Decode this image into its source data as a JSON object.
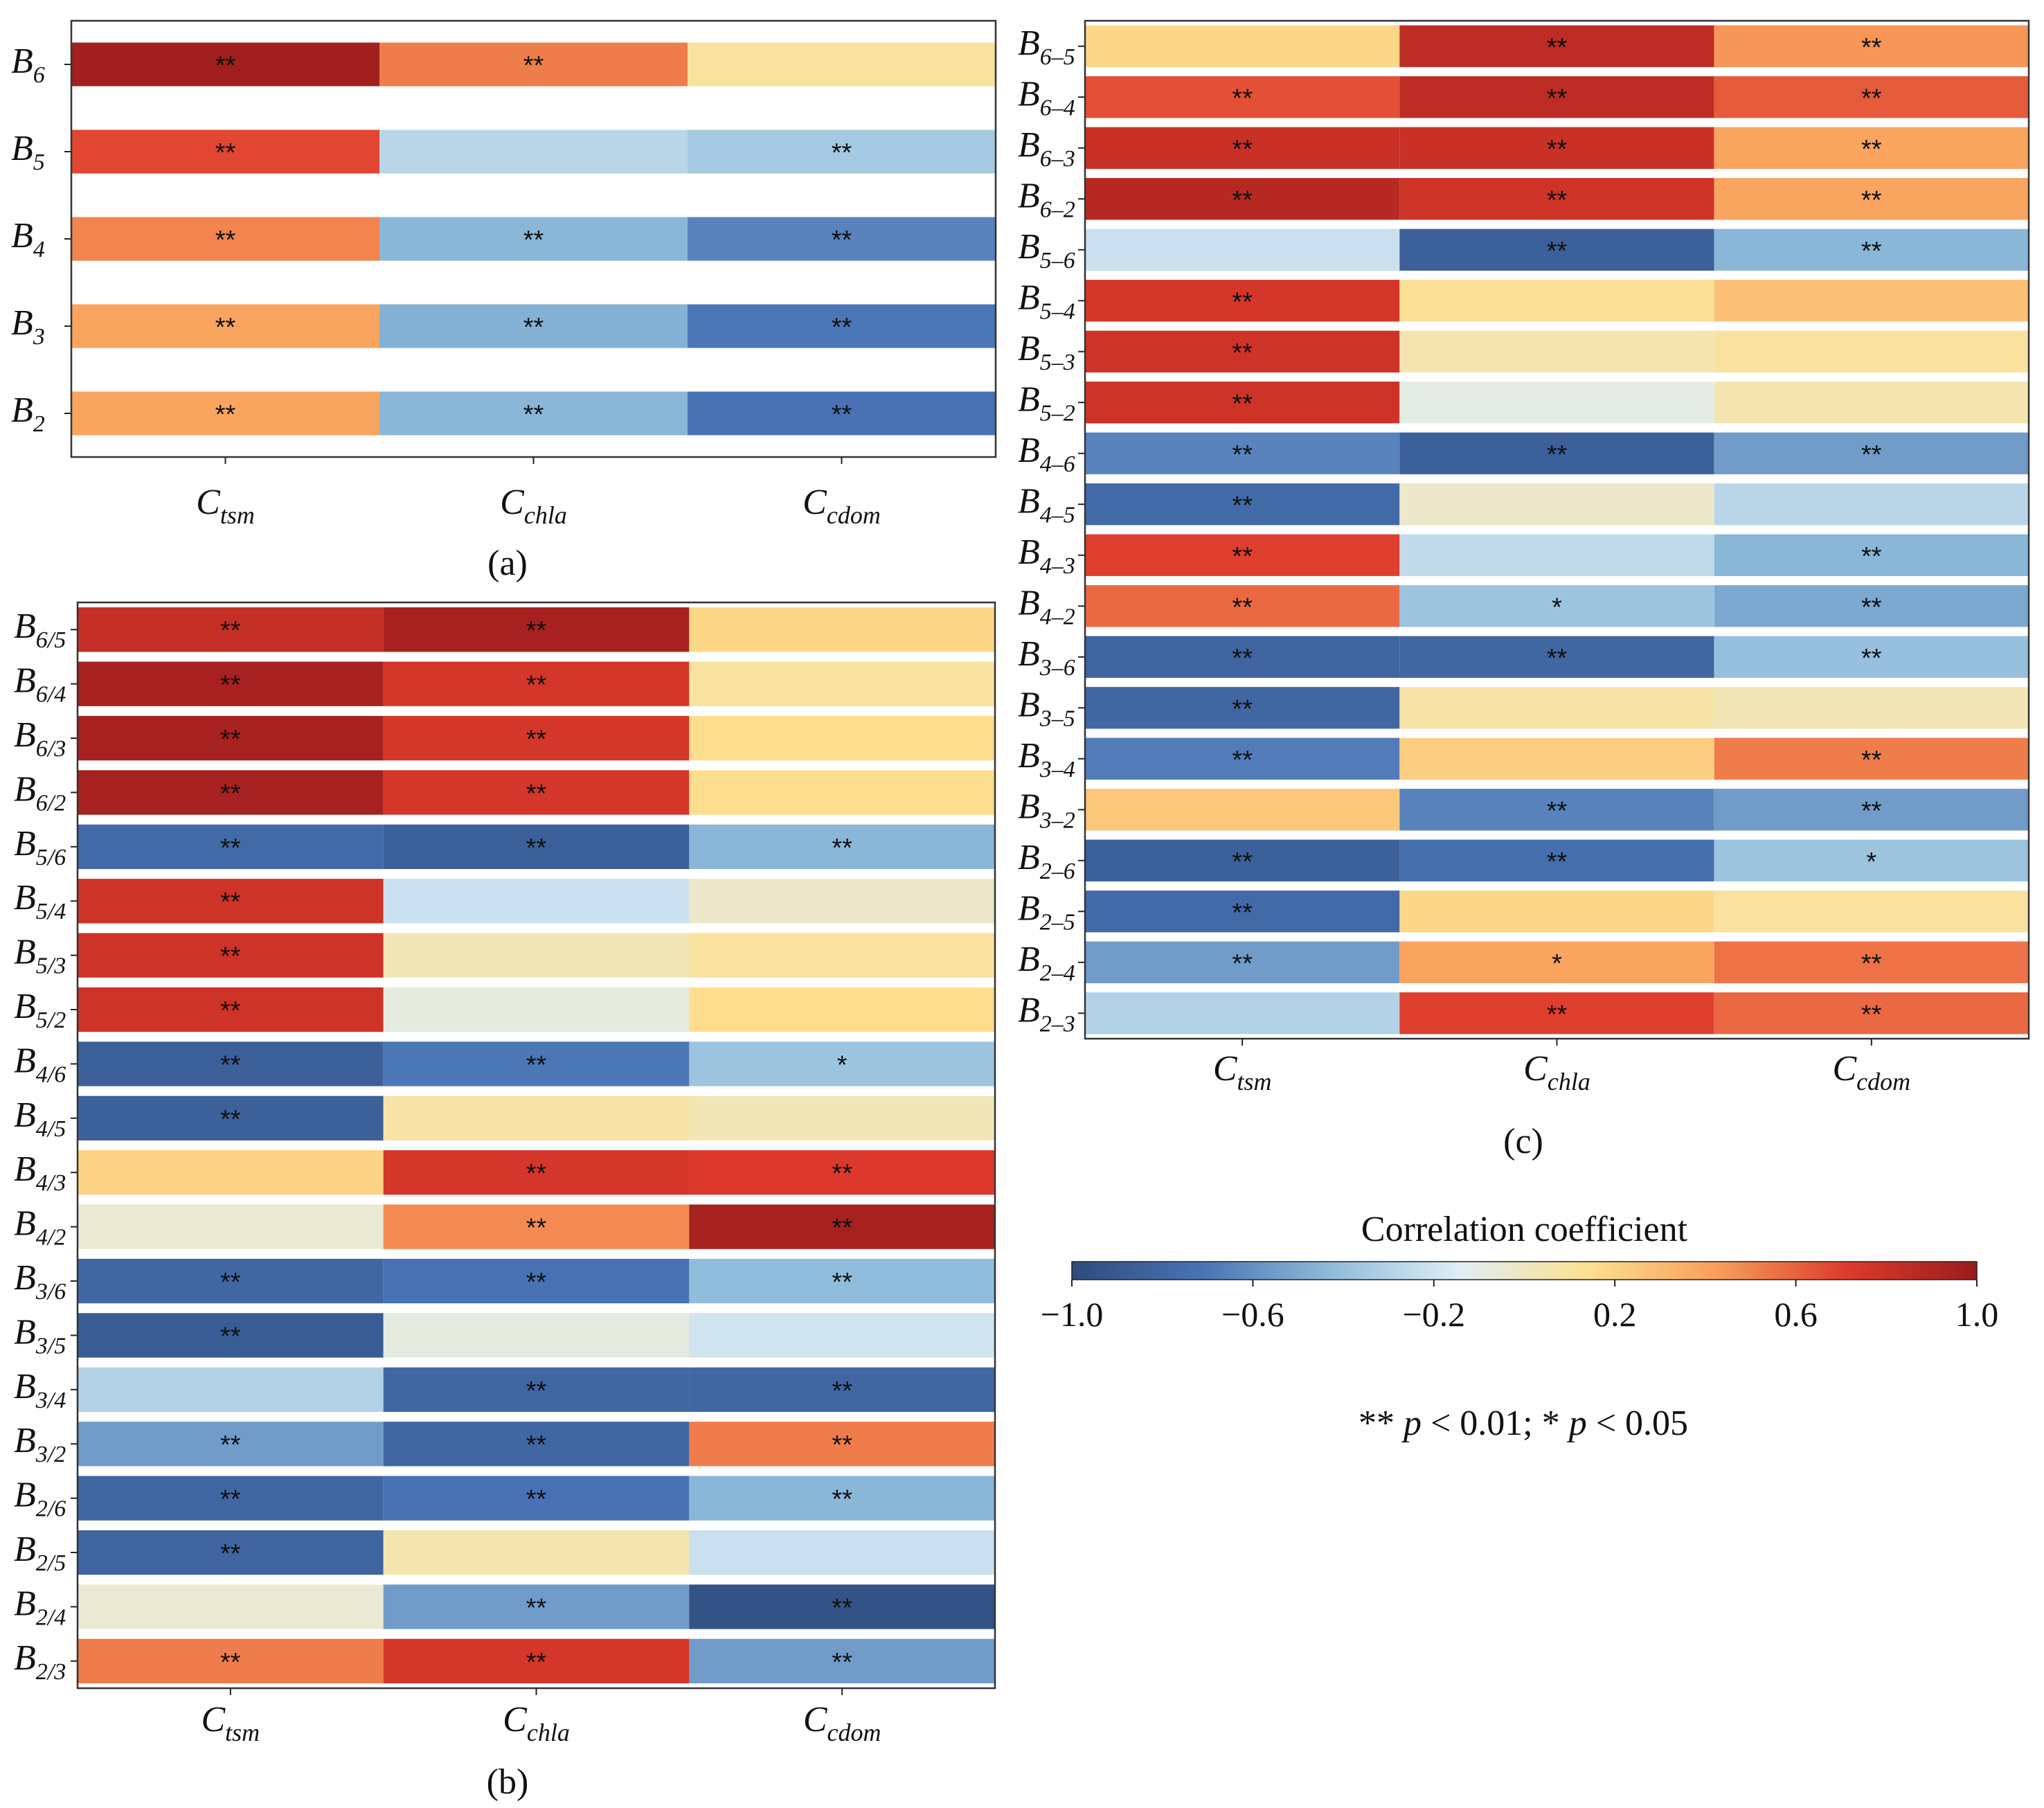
{
  "chart_data": [
    {
      "type": "heatmap",
      "panel_label": "(a)",
      "columns": [
        {
          "base": "C",
          "sub": "tsm"
        },
        {
          "base": "C",
          "sub": "chla"
        },
        {
          "base": "C",
          "sub": "cdom"
        }
      ],
      "rows": [
        {
          "base": "B",
          "sub": "6",
          "values": [
            0.97,
            0.52,
            0.1
          ],
          "sig": [
            "**",
            "**",
            ""
          ]
        },
        {
          "base": "B",
          "sub": "5",
          "values": [
            0.68,
            -0.28,
            -0.35
          ],
          "sig": [
            "**",
            "",
            "**"
          ]
        },
        {
          "base": "B",
          "sub": "4",
          "values": [
            0.5,
            -0.45,
            -0.65
          ],
          "sig": [
            "**",
            "**",
            "**"
          ]
        },
        {
          "base": "B",
          "sub": "3",
          "values": [
            0.4,
            -0.47,
            -0.7
          ],
          "sig": [
            "**",
            "**",
            "**"
          ]
        },
        {
          "base": "B",
          "sub": "2",
          "values": [
            0.4,
            -0.45,
            -0.72
          ],
          "sig": [
            "**",
            "**",
            "**"
          ]
        }
      ]
    },
    {
      "type": "heatmap",
      "panel_label": "(b)",
      "columns": [
        {
          "base": "C",
          "sub": "tsm"
        },
        {
          "base": "C",
          "sub": "chla"
        },
        {
          "base": "C",
          "sub": "cdom"
        }
      ],
      "rows": [
        {
          "base": "B",
          "sub": "6/5",
          "values": [
            0.82,
            0.95,
            0.18
          ],
          "sig": [
            "**",
            "**",
            ""
          ]
        },
        {
          "base": "B",
          "sub": "6/4",
          "values": [
            0.95,
            0.75,
            0.1
          ],
          "sig": [
            "**",
            "**",
            ""
          ]
        },
        {
          "base": "B",
          "sub": "6/3",
          "values": [
            0.95,
            0.75,
            0.15
          ],
          "sig": [
            "**",
            "**",
            ""
          ]
        },
        {
          "base": "B",
          "sub": "6/2",
          "values": [
            0.95,
            0.75,
            0.15
          ],
          "sig": [
            "**",
            "**",
            ""
          ]
        },
        {
          "base": "B",
          "sub": "5/6",
          "values": [
            -0.78,
            -0.85,
            -0.45
          ],
          "sig": [
            "**",
            "**",
            "**"
          ]
        },
        {
          "base": "B",
          "sub": "5/4",
          "values": [
            0.78,
            -0.22,
            -0.02
          ],
          "sig": [
            "**",
            "",
            ""
          ]
        },
        {
          "base": "B",
          "sub": "5/3",
          "values": [
            0.78,
            0.03,
            0.1
          ],
          "sig": [
            "**",
            "",
            ""
          ]
        },
        {
          "base": "B",
          "sub": "5/2",
          "values": [
            0.78,
            -0.08,
            0.15
          ],
          "sig": [
            "**",
            "",
            ""
          ]
        },
        {
          "base": "B",
          "sub": "4/6",
          "values": [
            -0.85,
            -0.7,
            -0.38
          ],
          "sig": [
            "**",
            "**",
            "*"
          ]
        },
        {
          "base": "B",
          "sub": "4/5",
          "values": [
            -0.85,
            0.08,
            0.03
          ],
          "sig": [
            "**",
            "",
            ""
          ]
        },
        {
          "base": "B",
          "sub": "4/3",
          "values": [
            0.2,
            0.75,
            0.72
          ],
          "sig": [
            "",
            "**",
            "**"
          ]
        },
        {
          "base": "B",
          "sub": "4/2",
          "values": [
            -0.05,
            0.48,
            0.95
          ],
          "sig": [
            "",
            "**",
            "**"
          ]
        },
        {
          "base": "B",
          "sub": "3/6",
          "values": [
            -0.8,
            -0.72,
            -0.42
          ],
          "sig": [
            "**",
            "**",
            "**"
          ]
        },
        {
          "base": "B",
          "sub": "3/5",
          "values": [
            -0.88,
            -0.08,
            -0.2
          ],
          "sig": [
            "**",
            "",
            ""
          ]
        },
        {
          "base": "B",
          "sub": "3/4",
          "values": [
            -0.3,
            -0.8,
            -0.8
          ],
          "sig": [
            "",
            "**",
            "**"
          ]
        },
        {
          "base": "B",
          "sub": "3/2",
          "values": [
            -0.55,
            -0.8,
            0.52
          ],
          "sig": [
            "**",
            "**",
            "**"
          ]
        },
        {
          "base": "B",
          "sub": "2/6",
          "values": [
            -0.8,
            -0.72,
            -0.45
          ],
          "sig": [
            "**",
            "**",
            "**"
          ]
        },
        {
          "base": "B",
          "sub": "2/5",
          "values": [
            -0.82,
            0.05,
            -0.22
          ],
          "sig": [
            "**",
            "",
            ""
          ]
        },
        {
          "base": "B",
          "sub": "2/4",
          "values": [
            -0.05,
            -0.55,
            -0.95
          ],
          "sig": [
            "",
            "**",
            "**"
          ]
        },
        {
          "base": "B",
          "sub": "2/3",
          "values": [
            0.52,
            0.75,
            -0.55
          ],
          "sig": [
            "**",
            "**",
            "**"
          ]
        }
      ]
    },
    {
      "type": "heatmap",
      "panel_label": "(c)",
      "columns": [
        {
          "base": "C",
          "sub": "tsm"
        },
        {
          "base": "C",
          "sub": "chla"
        },
        {
          "base": "C",
          "sub": "cdom"
        }
      ],
      "rows": [
        {
          "base": "B",
          "sub": "6–5",
          "values": [
            0.18,
            0.85,
            0.45
          ],
          "sig": [
            "",
            "**",
            "**"
          ]
        },
        {
          "base": "B",
          "sub": "6–4",
          "values": [
            0.65,
            0.85,
            0.62
          ],
          "sig": [
            "**",
            "**",
            "**"
          ]
        },
        {
          "base": "B",
          "sub": "6–3",
          "values": [
            0.8,
            0.8,
            0.4
          ],
          "sig": [
            "**",
            "**",
            "**"
          ]
        },
        {
          "base": "B",
          "sub": "6–2",
          "values": [
            0.88,
            0.78,
            0.4
          ],
          "sig": [
            "**",
            "**",
            "**"
          ]
        },
        {
          "base": "B",
          "sub": "5–6",
          "values": [
            -0.22,
            -0.85,
            -0.45
          ],
          "sig": [
            "",
            "**",
            "**"
          ]
        },
        {
          "base": "B",
          "sub": "5–4",
          "values": [
            0.75,
            0.12,
            0.28
          ],
          "sig": [
            "**",
            "",
            ""
          ]
        },
        {
          "base": "B",
          "sub": "5–3",
          "values": [
            0.78,
            0.05,
            0.1
          ],
          "sig": [
            "**",
            "",
            ""
          ]
        },
        {
          "base": "B",
          "sub": "5–2",
          "values": [
            0.78,
            -0.1,
            0.05
          ],
          "sig": [
            "**",
            "",
            ""
          ]
        },
        {
          "base": "B",
          "sub": "4–6",
          "values": [
            -0.65,
            -0.85,
            -0.55
          ],
          "sig": [
            "**",
            "**",
            "**"
          ]
        },
        {
          "base": "B",
          "sub": "4–5",
          "values": [
            -0.78,
            -0.02,
            -0.28
          ],
          "sig": [
            "**",
            "",
            ""
          ]
        },
        {
          "base": "B",
          "sub": "4–3",
          "values": [
            0.7,
            -0.25,
            -0.45
          ],
          "sig": [
            "**",
            "",
            "**"
          ]
        },
        {
          "base": "B",
          "sub": "4–2",
          "values": [
            0.58,
            -0.38,
            -0.5
          ],
          "sig": [
            "**",
            "*",
            "**"
          ]
        },
        {
          "base": "B",
          "sub": "3–6",
          "values": [
            -0.82,
            -0.8,
            -0.4
          ],
          "sig": [
            "**",
            "**",
            "**"
          ]
        },
        {
          "base": "B",
          "sub": "3–5",
          "values": [
            -0.8,
            0.08,
            0.03
          ],
          "sig": [
            "**",
            "",
            ""
          ]
        },
        {
          "base": "B",
          "sub": "3–4",
          "values": [
            -0.68,
            0.22,
            0.52
          ],
          "sig": [
            "**",
            "",
            "**"
          ]
        },
        {
          "base": "B",
          "sub": "3–2",
          "values": [
            0.25,
            -0.65,
            -0.55
          ],
          "sig": [
            "",
            "**",
            "**"
          ]
        },
        {
          "base": "B",
          "sub": "2–6",
          "values": [
            -0.85,
            -0.75,
            -0.38
          ],
          "sig": [
            "**",
            "**",
            "*"
          ]
        },
        {
          "base": "B",
          "sub": "2–5",
          "values": [
            -0.78,
            0.18,
            0.1
          ],
          "sig": [
            "**",
            "",
            ""
          ]
        },
        {
          "base": "B",
          "sub": "2–4",
          "values": [
            -0.55,
            0.4,
            0.55
          ],
          "sig": [
            "**",
            "*",
            "**"
          ]
        },
        {
          "base": "B",
          "sub": "2–3",
          "values": [
            -0.3,
            0.7,
            0.58
          ],
          "sig": [
            "",
            "**",
            "**"
          ]
        }
      ]
    }
  ],
  "colorbar": {
    "title": "Correlation coefficient",
    "range": [
      -1.0,
      1.0
    ],
    "ticks": [
      {
        "value": -1.0,
        "label": "−1.0"
      },
      {
        "value": -0.6,
        "label": "−0.6"
      },
      {
        "value": -0.2,
        "label": "−0.2"
      },
      {
        "value": 0.2,
        "label": "0.2"
      },
      {
        "value": 0.6,
        "label": "0.6"
      },
      {
        "value": 1.0,
        "label": "1.0"
      }
    ],
    "stops": [
      "#2f4b7c",
      "#4873b4",
      "#8fbbdb",
      "#e0eef5",
      "#fde08f",
      "#f89d5a",
      "#dd3a2c",
      "#9a1c1c"
    ]
  },
  "significance_note": {
    "double_star": "**",
    "p_symbol": "p",
    "level_1": "< 0.01;",
    "single_star": "*",
    "level_2": "< 0.05"
  }
}
